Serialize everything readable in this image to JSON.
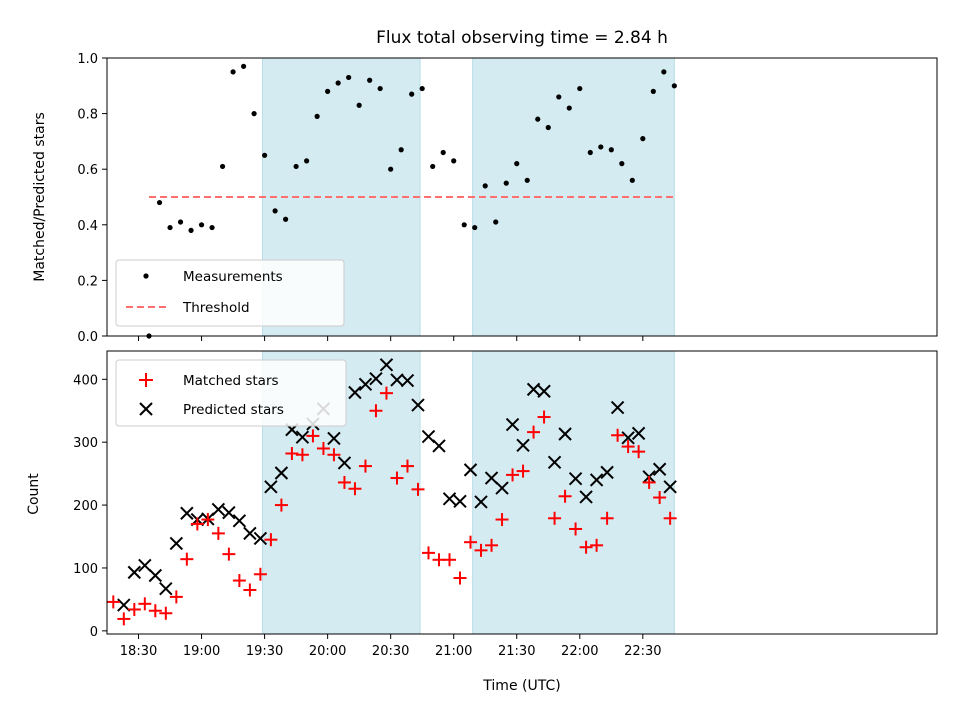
{
  "chart_data": [
    {
      "type": "scatter",
      "title": "Flux total observing time = 2.84 h",
      "ylabel": "Matched/Predicted stars",
      "xlabel": "",
      "xlim_min": [
        1095,
        1490
      ],
      "ylim": [
        0,
        1.0
      ],
      "yticks": [
        0.0,
        0.2,
        0.4,
        0.6,
        0.8,
        1.0
      ],
      "ytick_labels": [
        "0.0",
        "0.2",
        "0.4",
        "0.6",
        "0.8",
        "1.0"
      ],
      "x_tick_labels_visible": false,
      "legend_position": "lower-left",
      "shaded_spans_min": [
        [
          1169,
          1244
        ],
        [
          1269,
          1365
        ]
      ],
      "shade_color": "#add8e6",
      "threshold": {
        "name": "Threshold",
        "value": 0.5,
        "x_range_min": [
          1115,
          1365
        ],
        "color": "#ff6f6f"
      },
      "series": [
        {
          "name": "Measurements",
          "color": "#000000",
          "x_min": [
            1115,
            1120,
            1125,
            1130,
            1135,
            1140,
            1145,
            1150,
            1155,
            1160,
            1165,
            1170,
            1175,
            1180,
            1185,
            1190,
            1195,
            1200,
            1205,
            1210,
            1215,
            1220,
            1225,
            1230,
            1235,
            1240,
            1245,
            1250,
            1255,
            1260,
            1265,
            1270,
            1275,
            1280,
            1285,
            1290,
            1295,
            1300,
            1305,
            1310,
            1315,
            1320,
            1325,
            1330,
            1335,
            1340,
            1345,
            1350,
            1355,
            1360,
            1365
          ],
          "y": [
            0.0,
            0.48,
            0.39,
            0.41,
            0.38,
            0.4,
            0.39,
            0.61,
            0.95,
            0.97,
            0.8,
            0.65,
            0.45,
            0.42,
            0.61,
            0.63,
            0.79,
            0.88,
            0.91,
            0.93,
            0.83,
            0.92,
            0.89,
            0.6,
            0.67,
            0.87,
            0.89,
            0.61,
            0.66,
            0.63,
            0.4,
            0.39,
            0.54,
            0.41,
            0.55,
            0.62,
            0.56,
            0.78,
            0.75,
            0.86,
            0.82,
            0.89,
            0.66,
            0.68,
            0.67,
            0.62,
            0.56,
            0.71,
            0.88,
            0.95,
            0.9
          ]
        }
      ]
    },
    {
      "type": "scatter",
      "title": "",
      "ylabel": "Count",
      "xlabel": "Time (UTC)",
      "xlim_min": [
        1095,
        1490
      ],
      "ylim": [
        0,
        440
      ],
      "yticks": [
        0,
        100,
        200,
        300,
        400
      ],
      "ytick_labels": [
        "0",
        "100",
        "200",
        "300",
        "400"
      ],
      "xticks_min": [
        1110,
        1140,
        1170,
        1200,
        1230,
        1260,
        1290,
        1320,
        1350
      ],
      "xtick_labels": [
        "18:30",
        "19:00",
        "19:30",
        "20:00",
        "20:30",
        "21:00",
        "21:30",
        "22:00",
        "22:30"
      ],
      "legend_position": "upper-left",
      "shaded_spans_min": [
        [
          1169,
          1244
        ],
        [
          1269,
          1365
        ]
      ],
      "shade_color": "#add8e6",
      "series": [
        {
          "name": "Matched stars",
          "marker": "plus",
          "color": "#ff0000",
          "x_min": [
            1098,
            1103,
            1108,
            1113,
            1118,
            1123,
            1128,
            1133,
            1138,
            1143,
            1148,
            1153,
            1158,
            1163,
            1168,
            1173,
            1178,
            1183,
            1188,
            1193,
            1198,
            1203,
            1208,
            1213,
            1218,
            1223,
            1228,
            1233,
            1238,
            1243,
            1248,
            1253,
            1258,
            1263,
            1268,
            1273,
            1278,
            1283,
            1288,
            1293,
            1298,
            1303,
            1308,
            1313,
            1318,
            1323,
            1328,
            1333,
            1338,
            1343,
            1348,
            1353,
            1358,
            1363
          ],
          "y": [
            46,
            19,
            34,
            43,
            32,
            28,
            54,
            114,
            170,
            177,
            155,
            122,
            80,
            65,
            90,
            145,
            200,
            282,
            280,
            310,
            290,
            280,
            236,
            226,
            262,
            350,
            378,
            243,
            262,
            225,
            124,
            113,
            113,
            84,
            141,
            128,
            136,
            177,
            248,
            254,
            316,
            340,
            179,
            214,
            162,
            133,
            136,
            179,
            311,
            293,
            285,
            236,
            212,
            179
          ]
        },
        {
          "name": "Predicted stars",
          "marker": "x",
          "color": "#000000",
          "x_min": [
            1103,
            1108,
            1113,
            1118,
            1123,
            1128,
            1133,
            1138,
            1143,
            1148,
            1153,
            1158,
            1163,
            1168,
            1173,
            1178,
            1183,
            1188,
            1193,
            1198,
            1203,
            1208,
            1213,
            1218,
            1223,
            1228,
            1233,
            1238,
            1243,
            1248,
            1253,
            1258,
            1263,
            1268,
            1273,
            1278,
            1283,
            1288,
            1293,
            1298,
            1303,
            1308,
            1313,
            1318,
            1323,
            1328,
            1333,
            1338,
            1343,
            1348,
            1353,
            1358,
            1363
          ],
          "y": [
            41,
            93,
            104,
            88,
            67,
            139,
            187,
            177,
            178,
            193,
            188,
            175,
            155,
            147,
            229,
            251,
            320,
            308,
            329,
            353,
            306,
            267,
            379,
            392,
            401,
            423,
            399,
            398,
            359,
            309,
            294,
            210,
            206,
            256,
            205,
            243,
            227,
            328,
            295,
            384,
            381,
            268,
            313,
            242,
            213,
            240,
            252,
            355,
            307,
            314,
            245,
            257,
            229
          ]
        }
      ]
    }
  ]
}
